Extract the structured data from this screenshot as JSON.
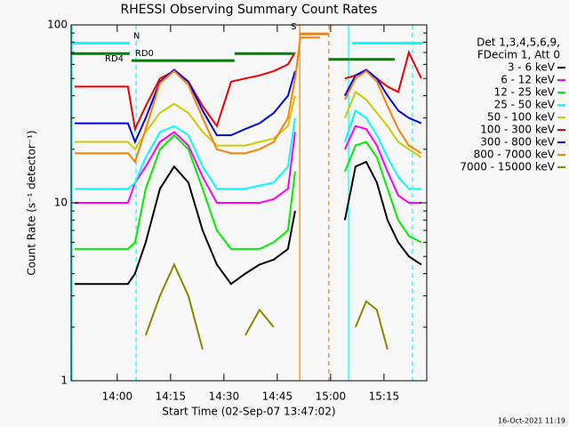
{
  "chart_data": {
    "type": "line",
    "title": "RHESSI Observing Summary Count Rates",
    "xlabel": "Start Time (02-Sep-07 13:47:02)",
    "ylabel": "Count Rate (s⁻¹ detector⁻¹)",
    "legend_header": [
      "Det 1,3,4,5,6,9,",
      "FDecim 1, Att 0"
    ],
    "log_y": true,
    "xlim": [
      827.03,
      927.03
    ],
    "xticks": [
      {
        "value": 840,
        "label": "14:00"
      },
      {
        "value": 855,
        "label": "14:15"
      },
      {
        "value": 870,
        "label": "14:30"
      },
      {
        "value": 885,
        "label": "14:45"
      },
      {
        "value": 900,
        "label": "15:00"
      },
      {
        "value": 915,
        "label": "15:15"
      }
    ],
    "ylim": [
      1,
      100
    ],
    "yticks": [
      1,
      10,
      100
    ],
    "yminor": [
      2,
      3,
      4,
      5,
      6,
      7,
      8,
      9,
      20,
      30,
      40,
      50,
      60,
      70,
      80,
      90
    ],
    "x": [
      828,
      832,
      836,
      840,
      843,
      845,
      848,
      852,
      856,
      860,
      864,
      868,
      872,
      876,
      880,
      884,
      888,
      890,
      891.5,
      893,
      897,
      901,
      904,
      907,
      910,
      913,
      916,
      919,
      922,
      925.5
    ],
    "series": [
      {
        "name": "3 - 6 keV",
        "color": "#000000",
        "values": [
          3.5,
          3.5,
          3.5,
          3.5,
          3.5,
          4,
          6,
          12,
          16,
          13,
          7,
          4.5,
          3.5,
          4,
          4.5,
          4.8,
          5.5,
          9,
          null,
          null,
          null,
          null,
          8,
          16,
          17,
          13,
          8,
          6,
          5,
          4.5
        ]
      },
      {
        "name": "6 - 12 keV",
        "color": "#ff00ff",
        "values": [
          10,
          10,
          10,
          10,
          10,
          13,
          16,
          22,
          25,
          21,
          14,
          10,
          10,
          10,
          10,
          10.5,
          12,
          25,
          null,
          null,
          null,
          null,
          20,
          27,
          26,
          21,
          15,
          11,
          10,
          10
        ]
      },
      {
        "name": "12 - 25 keV",
        "color": "#00ee00",
        "values": [
          5.5,
          5.5,
          5.5,
          5.5,
          5.5,
          6,
          12,
          20,
          24,
          20,
          12,
          7,
          5.5,
          5.5,
          5.5,
          6,
          7,
          15,
          null,
          null,
          null,
          null,
          15,
          21,
          22,
          18,
          12,
          8,
          6.5,
          6
        ]
      },
      {
        "name": "25 - 50 keV",
        "color": "#00ffff",
        "values": [
          12,
          12,
          12,
          12,
          12,
          13,
          18,
          25,
          27,
          24,
          16,
          12,
          12,
          12,
          12.5,
          13,
          16,
          30,
          null,
          null,
          null,
          null,
          22,
          33,
          30,
          24,
          18,
          14,
          12,
          12
        ]
      },
      {
        "name": "50 - 100 keV",
        "color": "#cccc00",
        "values": [
          22,
          22,
          22,
          22,
          22,
          20,
          25,
          32,
          36,
          32,
          25,
          21,
          21,
          21,
          22,
          23,
          27,
          40,
          null,
          null,
          null,
          null,
          30,
          42,
          38,
          32,
          27,
          22,
          20,
          18
        ]
      },
      {
        "name": "100 - 300 keV",
        "color": "#ee0000",
        "values": [
          45,
          45,
          45,
          45,
          45,
          26,
          35,
          50,
          55,
          48,
          35,
          27,
          48,
          50,
          52,
          55,
          60,
          70,
          null,
          null,
          null,
          null,
          50,
          52,
          55,
          50,
          45,
          42,
          70,
          50
        ]
      },
      {
        "name": "300 - 800 keV",
        "color": "#0000ee",
        "values": [
          28,
          28,
          28,
          28,
          28,
          22,
          30,
          48,
          56,
          48,
          33,
          24,
          24,
          26,
          28,
          32,
          40,
          55,
          null,
          null,
          null,
          null,
          40,
          52,
          56,
          50,
          40,
          33,
          30,
          28
        ]
      },
      {
        "name": "800 - 7000 keV",
        "color": "#ff8000",
        "values": [
          19,
          19,
          19,
          19,
          19,
          17,
          26,
          47,
          55,
          46,
          30,
          20,
          19,
          19,
          20,
          22,
          30,
          50,
          85,
          85,
          85,
          null,
          38,
          50,
          55,
          48,
          35,
          26,
          21,
          19
        ]
      },
      {
        "name": "7000 - 15000 keV",
        "color": "#888800",
        "values": [
          null,
          null,
          null,
          null,
          null,
          null,
          1.8,
          3,
          4.5,
          3,
          1.5,
          null,
          null,
          1.8,
          2.5,
          2,
          null,
          null,
          null,
          null,
          null,
          null,
          null,
          2,
          2.8,
          2.5,
          1.5,
          null,
          null,
          null
        ]
      }
    ],
    "flags": [
      {
        "color": "#00ffff",
        "start": 827.03,
        "end": 843.5,
        "level": 79,
        "label": "N"
      },
      {
        "color": "#00ffff",
        "start": 906,
        "end": 926,
        "level": 79
      },
      {
        "color": "#008000",
        "start": 827.03,
        "end": 843.5,
        "level": 69,
        "label": "RD4"
      },
      {
        "color": "#008000",
        "start": 844,
        "end": 873,
        "level": 63,
        "label": "RD0"
      },
      {
        "color": "#008000",
        "start": 873,
        "end": 889.5,
        "level": 69
      },
      {
        "color": "#008000",
        "start": 899.5,
        "end": 918,
        "level": 64
      },
      {
        "color": "#ff8000",
        "start": 891.3,
        "end": 899.5,
        "level": 89,
        "label": "S"
      }
    ],
    "vlines": [
      {
        "x": 827.3,
        "color": "#00ffff",
        "dashed": false
      },
      {
        "x": 845.3,
        "color": "#00ffff",
        "dashed": true
      },
      {
        "x": 891.3,
        "color": "#ff8000",
        "dashed": false
      },
      {
        "x": 899.5,
        "color": "#ff8000",
        "dashed": true
      },
      {
        "x": 905.03,
        "color": "#00ffff",
        "dashed": false
      },
      {
        "x": 923,
        "color": "#00ffff",
        "dashed": true
      }
    ]
  },
  "footer": "16-Oct-2021 11:19"
}
